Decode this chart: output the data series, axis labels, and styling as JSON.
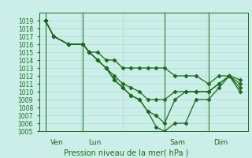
{
  "title": "Pression niveau de la mer( hPa )",
  "background_color": "#cceee8",
  "grid_color": "#aaddcc",
  "line_color": "#1a6b1a",
  "ylim": [
    1005,
    1020
  ],
  "ytick_min": 1005,
  "ytick_max": 1019,
  "xlim_min": 0.0,
  "xlim_max": 1.0,
  "day_positions": [
    0.03,
    0.21,
    0.6,
    0.81
  ],
  "day_labels": [
    "Ven",
    "Lun",
    "Sam",
    "Dim"
  ],
  "series": [
    {
      "x": [
        0.03,
        0.07,
        0.14,
        0.21,
        0.24,
        0.28,
        0.32,
        0.36,
        0.4,
        0.44,
        0.48,
        0.52,
        0.56,
        0.6,
        0.65,
        0.7,
        0.75,
        0.81,
        0.86,
        0.91,
        0.96
      ],
      "y": [
        1019,
        1017,
        1016,
        1016,
        1015,
        1015,
        1014,
        1014,
        1013,
        1013,
        1013,
        1013,
        1013,
        1013,
        1012,
        1012,
        1012,
        1011,
        1012,
        1012,
        1011.5
      ]
    },
    {
      "x": [
        0.03,
        0.07,
        0.14,
        0.21,
        0.24,
        0.28,
        0.32,
        0.36,
        0.4,
        0.44,
        0.48,
        0.52,
        0.56,
        0.6,
        0.65,
        0.7,
        0.75,
        0.81,
        0.86,
        0.91,
        0.96
      ],
      "y": [
        1019,
        1017,
        1016,
        1016,
        1015,
        1014,
        1013,
        1012,
        1011,
        1010.5,
        1010,
        1009,
        1009,
        1009,
        1010,
        1010,
        1010,
        1010,
        1011,
        1012,
        1011
      ]
    },
    {
      "x": [
        0.03,
        0.07,
        0.14,
        0.21,
        0.24,
        0.28,
        0.32,
        0.36,
        0.4,
        0.44,
        0.48,
        0.52,
        0.56,
        0.6,
        0.65,
        0.7,
        0.75,
        0.81,
        0.86,
        0.91,
        0.96
      ],
      "y": [
        1019,
        1017,
        1016,
        1016,
        1015,
        1014,
        1013,
        1011.5,
        1010.5,
        1009.5,
        1009,
        1007.5,
        1007,
        1006,
        1009,
        1010,
        1010,
        1010,
        1011,
        1012,
        1010.5
      ]
    },
    {
      "x": [
        0.03,
        0.07,
        0.14,
        0.21,
        0.24,
        0.28,
        0.32,
        0.36,
        0.4,
        0.44,
        0.48,
        0.52,
        0.56,
        0.6,
        0.65,
        0.7,
        0.75,
        0.81,
        0.86,
        0.91,
        0.96
      ],
      "y": [
        1019,
        1017,
        1016,
        1016,
        1015,
        1014,
        1013,
        1011.5,
        1010.5,
        1009.5,
        1009,
        1007.5,
        1005.5,
        1005,
        1006,
        1006,
        1009,
        1009,
        1010.5,
        1012,
        1010
      ]
    }
  ],
  "marker": "D",
  "markersize": 2.5,
  "linewidth": 0.9,
  "tick_fontsize": 5.5,
  "label_fontsize": 6.5,
  "title_fontsize": 7.0
}
